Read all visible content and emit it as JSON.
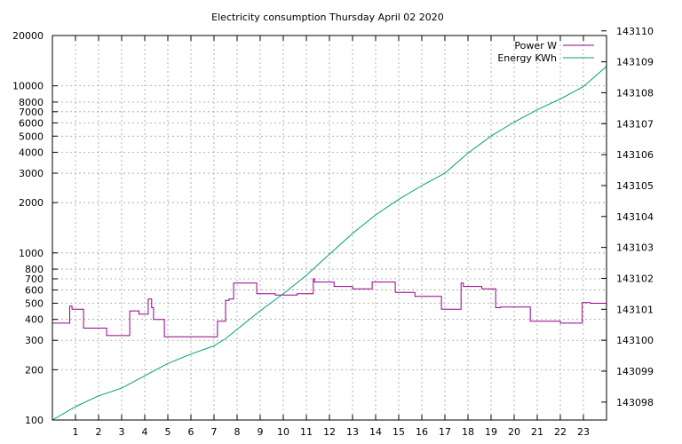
{
  "chart_data": {
    "type": "line",
    "title": "Electricity consumption Thursday April 02 2020",
    "x": {
      "range": [
        0,
        24
      ],
      "ticks": [
        1,
        2,
        3,
        4,
        5,
        6,
        7,
        8,
        9,
        10,
        11,
        12,
        13,
        14,
        15,
        16,
        17,
        18,
        19,
        20,
        21,
        22,
        23
      ],
      "tick_labels": [
        "1",
        "2",
        "3",
        "4",
        "5",
        "6",
        "7",
        "8",
        "9",
        "10",
        "11",
        "12",
        "13",
        "14",
        "15",
        "16",
        "17",
        "18",
        "19",
        "20",
        "21",
        "22",
        "23"
      ],
      "grid": true
    },
    "y_left": {
      "scale": "log",
      "range": [
        100,
        20000
      ],
      "ticks": [
        100,
        200,
        300,
        400,
        500,
        600,
        700,
        800,
        1000,
        2000,
        3000,
        4000,
        5000,
        6000,
        7000,
        8000,
        10000,
        20000
      ],
      "tick_labels": [
        "100",
        "200",
        "300",
        "400",
        "500",
        "600",
        "700",
        "800",
        "1000",
        "2000",
        "3000",
        "4000",
        "5000",
        "6000",
        "7000",
        "8000",
        "10000",
        "20000"
      ],
      "grid_ticks": [
        200,
        300,
        400,
        500,
        600,
        700,
        800,
        1000,
        2000,
        3000,
        4000,
        5000,
        6000,
        7000,
        8000,
        10000
      ]
    },
    "y_right": {
      "scale": "linear",
      "range": [
        143097.42,
        143109.85
      ],
      "ticks": [
        143098,
        143099,
        143100,
        143101,
        143102,
        143103,
        143104,
        143105,
        143106,
        143107,
        143108,
        143109,
        143110
      ],
      "tick_labels": [
        "143098",
        "143099",
        "143100",
        "143101",
        "143102",
        "143103",
        "143104",
        "143105",
        "143106",
        "143107",
        "143108",
        "143109",
        "143110"
      ]
    },
    "legend": {
      "placement": "top-right"
    },
    "series": [
      {
        "name": "Power W",
        "axis": "left",
        "color": "#94008b",
        "step": true,
        "points": [
          [
            0,
            380
          ],
          [
            0.75,
            380
          ],
          [
            0.75,
            480
          ],
          [
            0.85,
            480
          ],
          [
            0.85,
            460
          ],
          [
            1.35,
            460
          ],
          [
            1.35,
            355
          ],
          [
            2.35,
            355
          ],
          [
            2.35,
            320
          ],
          [
            3.35,
            320
          ],
          [
            3.35,
            450
          ],
          [
            3.75,
            450
          ],
          [
            3.75,
            430
          ],
          [
            4.15,
            430
          ],
          [
            4.15,
            530
          ],
          [
            4.3,
            530
          ],
          [
            4.3,
            470
          ],
          [
            4.38,
            470
          ],
          [
            4.38,
            400
          ],
          [
            4.85,
            400
          ],
          [
            4.85,
            315
          ],
          [
            7.15,
            315
          ],
          [
            7.15,
            390
          ],
          [
            7.5,
            390
          ],
          [
            7.5,
            520
          ],
          [
            7.65,
            520
          ],
          [
            7.65,
            530
          ],
          [
            7.85,
            530
          ],
          [
            7.85,
            660
          ],
          [
            8.85,
            660
          ],
          [
            8.85,
            570
          ],
          [
            9.65,
            570
          ],
          [
            9.65,
            560
          ],
          [
            10.6,
            560
          ],
          [
            10.6,
            570
          ],
          [
            11.3,
            570
          ],
          [
            11.3,
            700
          ],
          [
            11.35,
            700
          ],
          [
            11.35,
            670
          ],
          [
            12.2,
            670
          ],
          [
            12.2,
            630
          ],
          [
            13.0,
            630
          ],
          [
            13.0,
            610
          ],
          [
            13.85,
            610
          ],
          [
            13.85,
            670
          ],
          [
            14.85,
            670
          ],
          [
            14.85,
            580
          ],
          [
            15.7,
            580
          ],
          [
            15.7,
            550
          ],
          [
            16.85,
            550
          ],
          [
            16.85,
            460
          ],
          [
            17.7,
            460
          ],
          [
            17.7,
            660
          ],
          [
            17.8,
            660
          ],
          [
            17.8,
            630
          ],
          [
            18.6,
            630
          ],
          [
            18.6,
            610
          ],
          [
            19.2,
            610
          ],
          [
            19.2,
            470
          ],
          [
            19.4,
            470
          ],
          [
            19.4,
            475
          ],
          [
            20.7,
            475
          ],
          [
            20.7,
            390
          ],
          [
            22.0,
            390
          ],
          [
            22.0,
            380
          ],
          [
            22.95,
            380
          ],
          [
            22.95,
            505
          ],
          [
            23.3,
            505
          ],
          [
            23.3,
            500
          ],
          [
            24,
            500
          ]
        ]
      },
      {
        "name": "Energy KWh",
        "axis": "right",
        "color": "#009e73",
        "step": false,
        "points": [
          [
            0,
            143097.42
          ],
          [
            1,
            143097.85
          ],
          [
            2,
            143098.2
          ],
          [
            3,
            143098.45
          ],
          [
            4,
            143098.85
          ],
          [
            5,
            143099.25
          ],
          [
            6,
            143099.55
          ],
          [
            7,
            143099.82
          ],
          [
            7.5,
            143100.05
          ],
          [
            8,
            143100.35
          ],
          [
            9,
            143100.95
          ],
          [
            10,
            143101.5
          ],
          [
            11,
            143102.1
          ],
          [
            12,
            143102.78
          ],
          [
            13,
            143103.45
          ],
          [
            14,
            143104.05
          ],
          [
            15,
            143104.55
          ],
          [
            16,
            143105.0
          ],
          [
            17,
            143105.4
          ],
          [
            18,
            143106.05
          ],
          [
            19,
            143106.6
          ],
          [
            20,
            143107.05
          ],
          [
            21,
            143107.45
          ],
          [
            22,
            143107.8
          ],
          [
            23,
            143108.2
          ],
          [
            24,
            143108.85
          ]
        ]
      }
    ]
  }
}
